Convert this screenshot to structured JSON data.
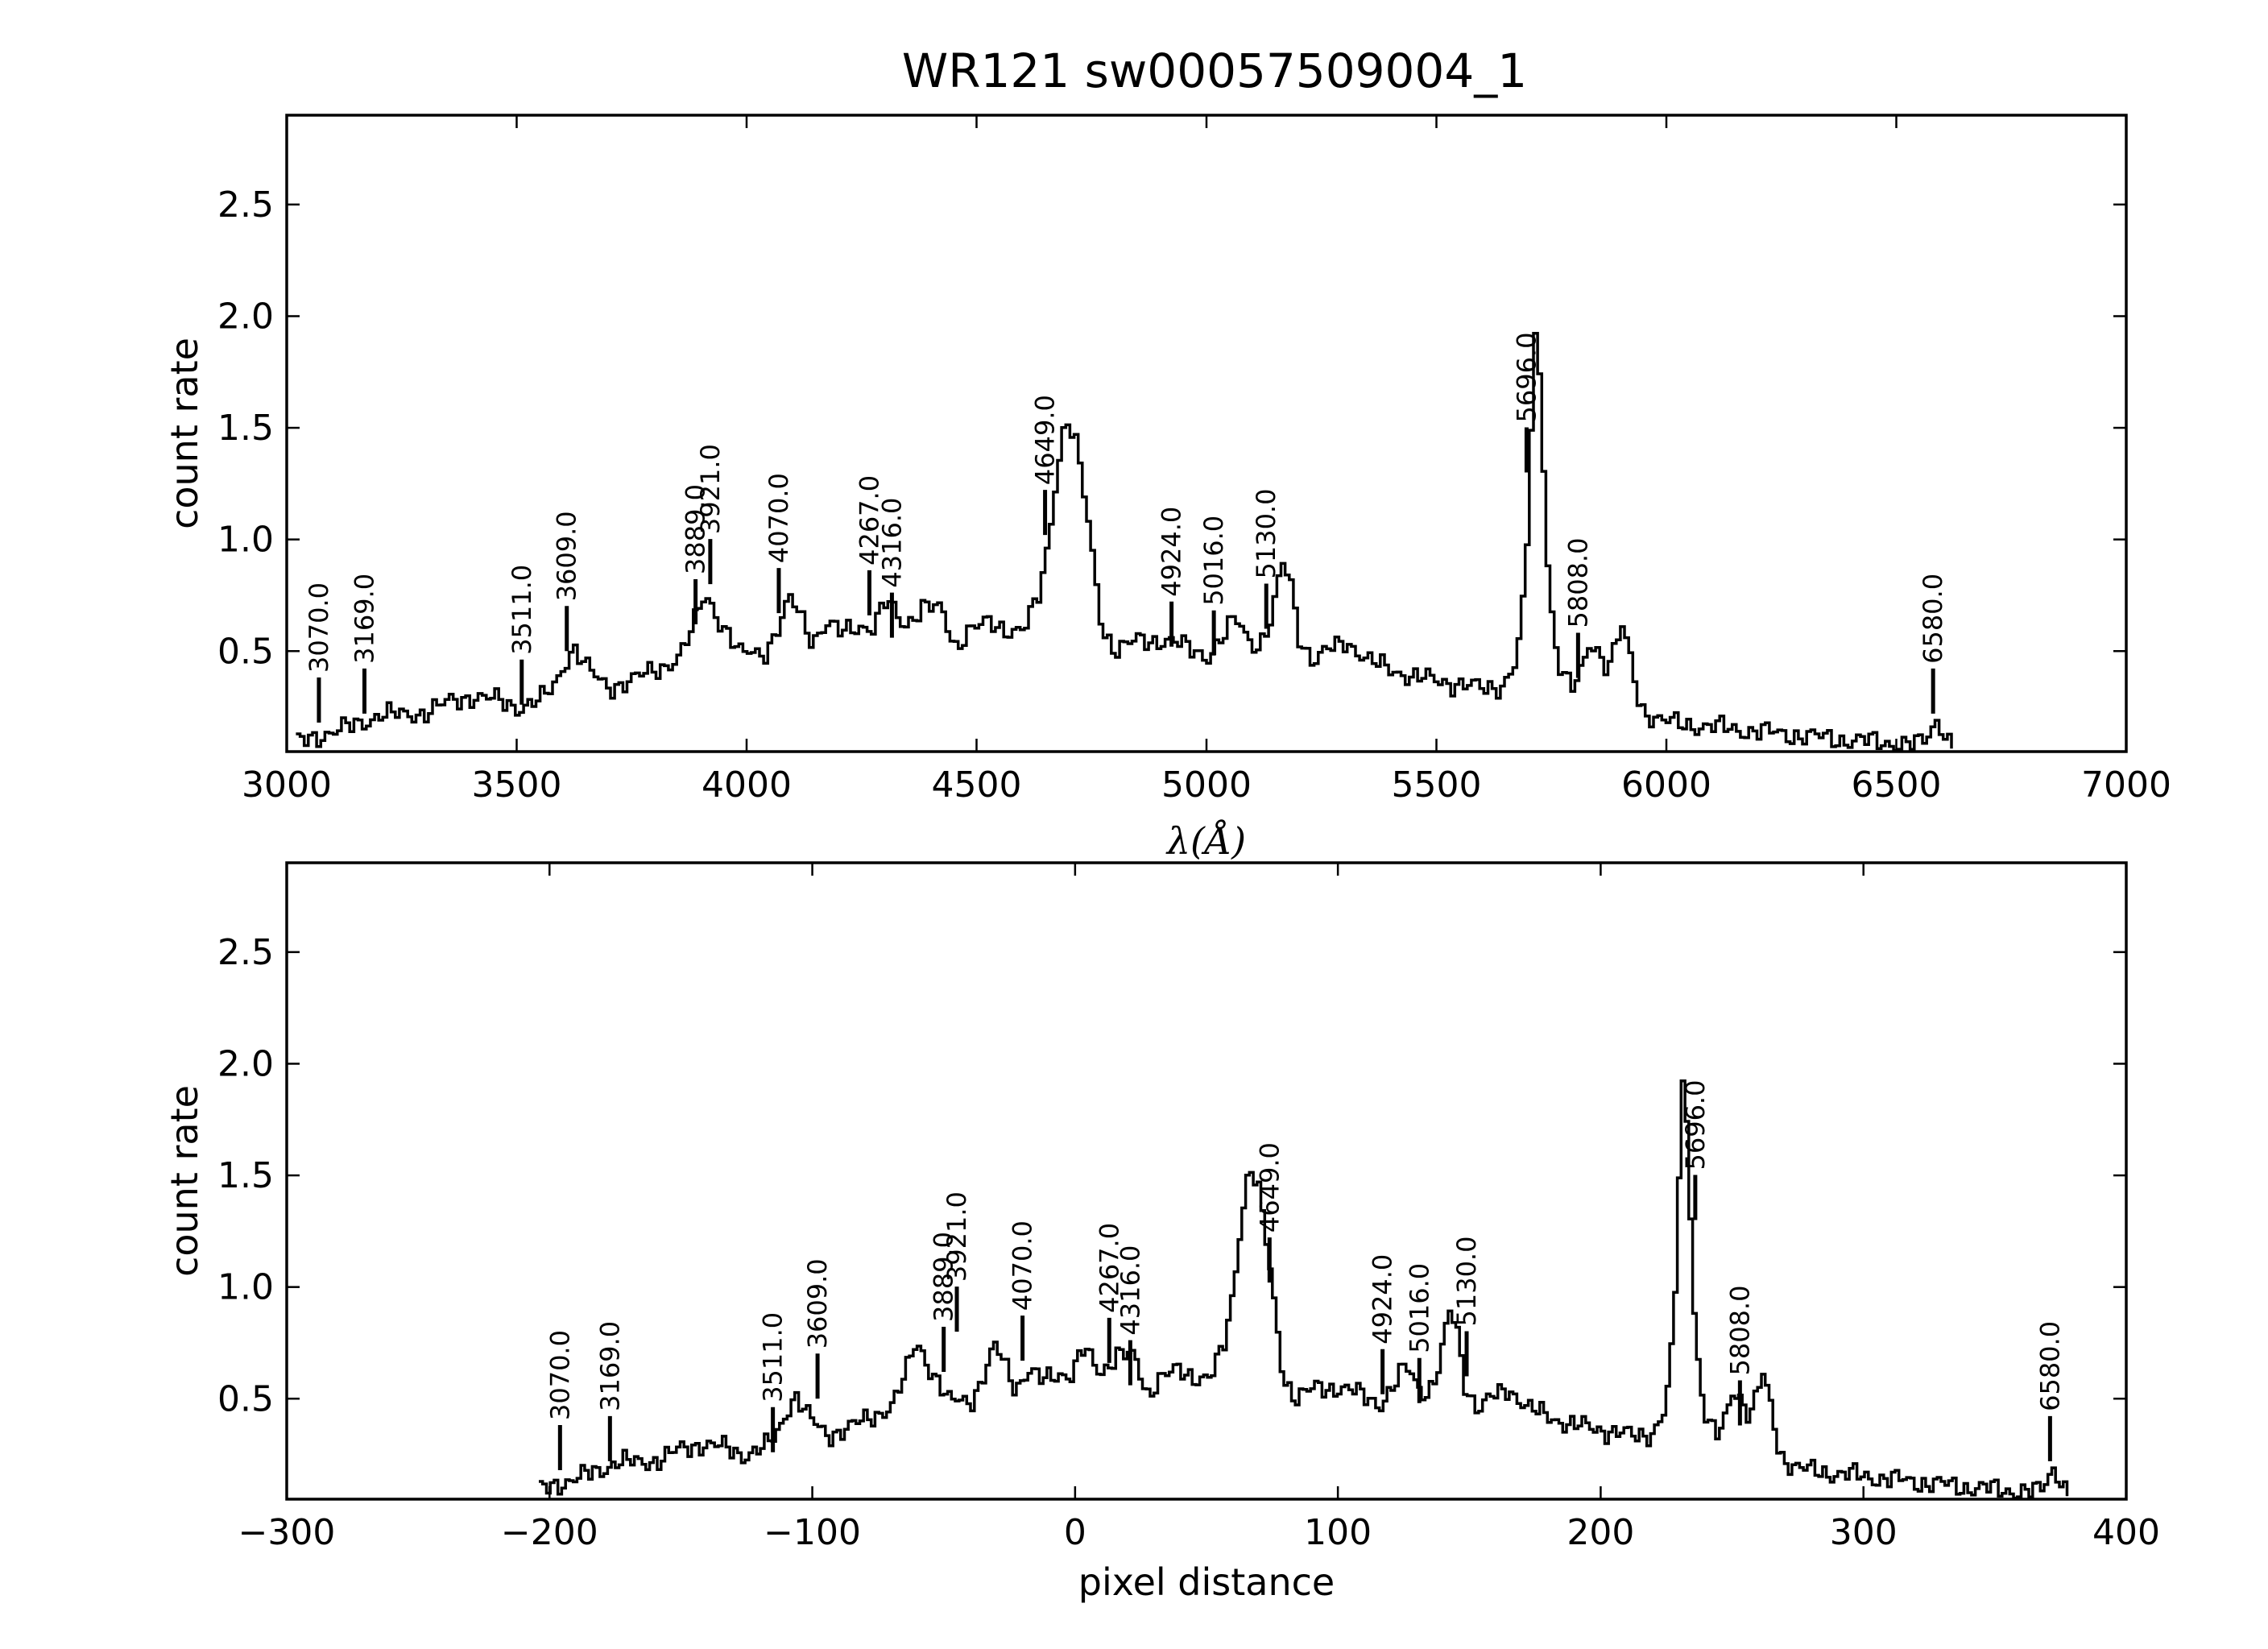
{
  "figure": {
    "title": "WR121  sw00057509004_1"
  },
  "chart_data": [
    {
      "type": "line",
      "panel": "top",
      "xlabel": "λ(Å)",
      "ylabel": "count rate",
      "xlim": [
        3000,
        7000
      ],
      "ylim": [
        0.05,
        2.9
      ],
      "xticks": [
        3000,
        3500,
        4000,
        4500,
        5000,
        5500,
        6000,
        6500,
        7000
      ],
      "yticks": [
        0.5,
        1.0,
        1.5,
        2.0,
        2.5
      ],
      "x_start": 3020,
      "x_end": 6625,
      "series": [
        {
          "name": "",
          "points": [
            [
              3020,
              0.09
            ],
            [
              3060,
              0.12
            ],
            [
              3100,
              0.14
            ],
            [
              3150,
              0.17
            ],
            [
              3200,
              0.22
            ],
            [
              3250,
              0.21
            ],
            [
              3300,
              0.23
            ],
            [
              3350,
              0.27
            ],
            [
              3400,
              0.3
            ],
            [
              3450,
              0.28
            ],
            [
              3500,
              0.25
            ],
            [
              3550,
              0.28
            ],
            [
              3580,
              0.35
            ],
            [
              3600,
              0.45
            ],
            [
              3620,
              0.52
            ],
            [
              3650,
              0.42
            ],
            [
              3680,
              0.36
            ],
            [
              3700,
              0.34
            ],
            [
              3750,
              0.37
            ],
            [
              3800,
              0.42
            ],
            [
              3850,
              0.47
            ],
            [
              3880,
              0.6
            ],
            [
              3900,
              0.75
            ],
            [
              3920,
              0.72
            ],
            [
              3940,
              0.62
            ],
            [
              3960,
              0.56
            ],
            [
              3980,
              0.48
            ],
            [
              4000,
              0.5
            ],
            [
              4040,
              0.5
            ],
            [
              4070,
              0.62
            ],
            [
              4090,
              0.73
            ],
            [
              4110,
              0.68
            ],
            [
              4140,
              0.55
            ],
            [
              4170,
              0.62
            ],
            [
              4200,
              0.58
            ],
            [
              4240,
              0.62
            ],
            [
              4270,
              0.6
            ],
            [
              4300,
              0.72
            ],
            [
              4320,
              0.67
            ],
            [
              4340,
              0.62
            ],
            [
              4380,
              0.7
            ],
            [
              4420,
              0.68
            ],
            [
              4450,
              0.52
            ],
            [
              4480,
              0.6
            ],
            [
              4520,
              0.62
            ],
            [
              4560,
              0.6
            ],
            [
              4600,
              0.6
            ],
            [
              4630,
              0.73
            ],
            [
              4650,
              0.95
            ],
            [
              4670,
              1.3
            ],
            [
              4690,
              1.55
            ],
            [
              4710,
              1.45
            ],
            [
              4730,
              1.2
            ],
            [
              4750,
              0.9
            ],
            [
              4770,
              0.6
            ],
            [
              4800,
              0.5
            ],
            [
              4850,
              0.55
            ],
            [
              4900,
              0.55
            ],
            [
              4950,
              0.52
            ],
            [
              5000,
              0.48
            ],
            [
              5030,
              0.55
            ],
            [
              5060,
              0.65
            ],
            [
              5080,
              0.58
            ],
            [
              5110,
              0.52
            ],
            [
              5140,
              0.65
            ],
            [
              5160,
              0.9
            ],
            [
              5180,
              0.8
            ],
            [
              5200,
              0.55
            ],
            [
              5230,
              0.45
            ],
            [
              5260,
              0.5
            ],
            [
              5300,
              0.55
            ],
            [
              5350,
              0.45
            ],
            [
              5400,
              0.42
            ],
            [
              5450,
              0.38
            ],
            [
              5500,
              0.37
            ],
            [
              5550,
              0.35
            ],
            [
              5600,
              0.33
            ],
            [
              5640,
              0.35
            ],
            [
              5670,
              0.45
            ],
            [
              5690,
              0.8
            ],
            [
              5700,
              1.4
            ],
            [
              5710,
              1.9
            ],
            [
              5720,
              1.75
            ],
            [
              5730,
              1.3
            ],
            [
              5740,
              0.8
            ],
            [
              5760,
              0.45
            ],
            [
              5790,
              0.32
            ],
            [
              5810,
              0.4
            ],
            [
              5830,
              0.55
            ],
            [
              5850,
              0.5
            ],
            [
              5870,
              0.42
            ],
            [
              5890,
              0.55
            ],
            [
              5900,
              0.6
            ],
            [
              5920,
              0.45
            ],
            [
              5940,
              0.25
            ],
            [
              5970,
              0.2
            ],
            [
              6000,
              0.18
            ],
            [
              6050,
              0.17
            ],
            [
              6100,
              0.16
            ],
            [
              6150,
              0.15
            ],
            [
              6200,
              0.14
            ],
            [
              6300,
              0.12
            ],
            [
              6400,
              0.1
            ],
            [
              6480,
              0.09
            ],
            [
              6540,
              0.08
            ],
            [
              6560,
              0.1
            ],
            [
              6575,
              0.16
            ],
            [
              6585,
              0.19
            ],
            [
              6600,
              0.15
            ],
            [
              6615,
              0.08
            ],
            [
              6625,
              0.06
            ]
          ]
        }
      ],
      "annotations": [
        {
          "label": "3070.0",
          "x": 3070,
          "y": 0.18
        },
        {
          "label": "3169.0",
          "x": 3169,
          "y": 0.22
        },
        {
          "label": "3511.0",
          "x": 3511,
          "y": 0.26
        },
        {
          "label": "3609.0",
          "x": 3609,
          "y": 0.5
        },
        {
          "label": "3889.0",
          "x": 3889,
          "y": 0.62
        },
        {
          "label": "3921.0",
          "x": 3921,
          "y": 0.8
        },
        {
          "label": "4070.0",
          "x": 4070,
          "y": 0.67
        },
        {
          "label": "4267.0",
          "x": 4267,
          "y": 0.66
        },
        {
          "label": "4316.0",
          "x": 4316,
          "y": 0.56
        },
        {
          "label": "4649.0",
          "x": 4649,
          "y": 1.02
        },
        {
          "label": "4924.0",
          "x": 4924,
          "y": 0.52
        },
        {
          "label": "5016.0",
          "x": 5016,
          "y": 0.48
        },
        {
          "label": "5130.0",
          "x": 5130,
          "y": 0.6
        },
        {
          "label": "5696.0",
          "x": 5696,
          "y": 1.3
        },
        {
          "label": "5808.0",
          "x": 5808,
          "y": 0.38
        },
        {
          "label": "6580.0",
          "x": 6580,
          "y": 0.22
        }
      ]
    },
    {
      "type": "line",
      "panel": "bottom",
      "xlabel": "pixel distance",
      "ylabel": "count rate",
      "xlim": [
        -300,
        400
      ],
      "ylim": [
        0.05,
        2.9
      ],
      "xticks": [
        -300,
        -200,
        -100,
        0,
        100,
        200,
        300,
        400
      ],
      "yticks": [
        0.5,
        1.0,
        1.5,
        2.0,
        2.5
      ],
      "annotations": [
        {
          "label": "3070.0",
          "x": -196,
          "y": 0.18
        },
        {
          "label": "3169.0",
          "x": -177,
          "y": 0.22
        },
        {
          "label": "3511.0",
          "x": -115,
          "y": 0.26
        },
        {
          "label": "3609.0",
          "x": -98,
          "y": 0.5
        },
        {
          "label": "3889.0",
          "x": -50,
          "y": 0.62
        },
        {
          "label": "3921.0",
          "x": -45,
          "y": 0.8
        },
        {
          "label": "4070.0",
          "x": -20,
          "y": 0.67
        },
        {
          "label": "4267.0",
          "x": 13,
          "y": 0.66
        },
        {
          "label": "4316.0",
          "x": 21,
          "y": 0.56
        },
        {
          "label": "4649.0",
          "x": 74,
          "y": 1.02
        },
        {
          "label": "4924.0",
          "x": 117,
          "y": 0.52
        },
        {
          "label": "5016.0",
          "x": 131,
          "y": 0.48
        },
        {
          "label": "5130.0",
          "x": 149,
          "y": 0.6
        },
        {
          "label": "5696.0",
          "x": 236,
          "y": 1.3
        },
        {
          "label": "5808.0",
          "x": 253,
          "y": 0.38
        },
        {
          "label": "6580.0",
          "x": 371,
          "y": 0.22
        }
      ]
    }
  ]
}
